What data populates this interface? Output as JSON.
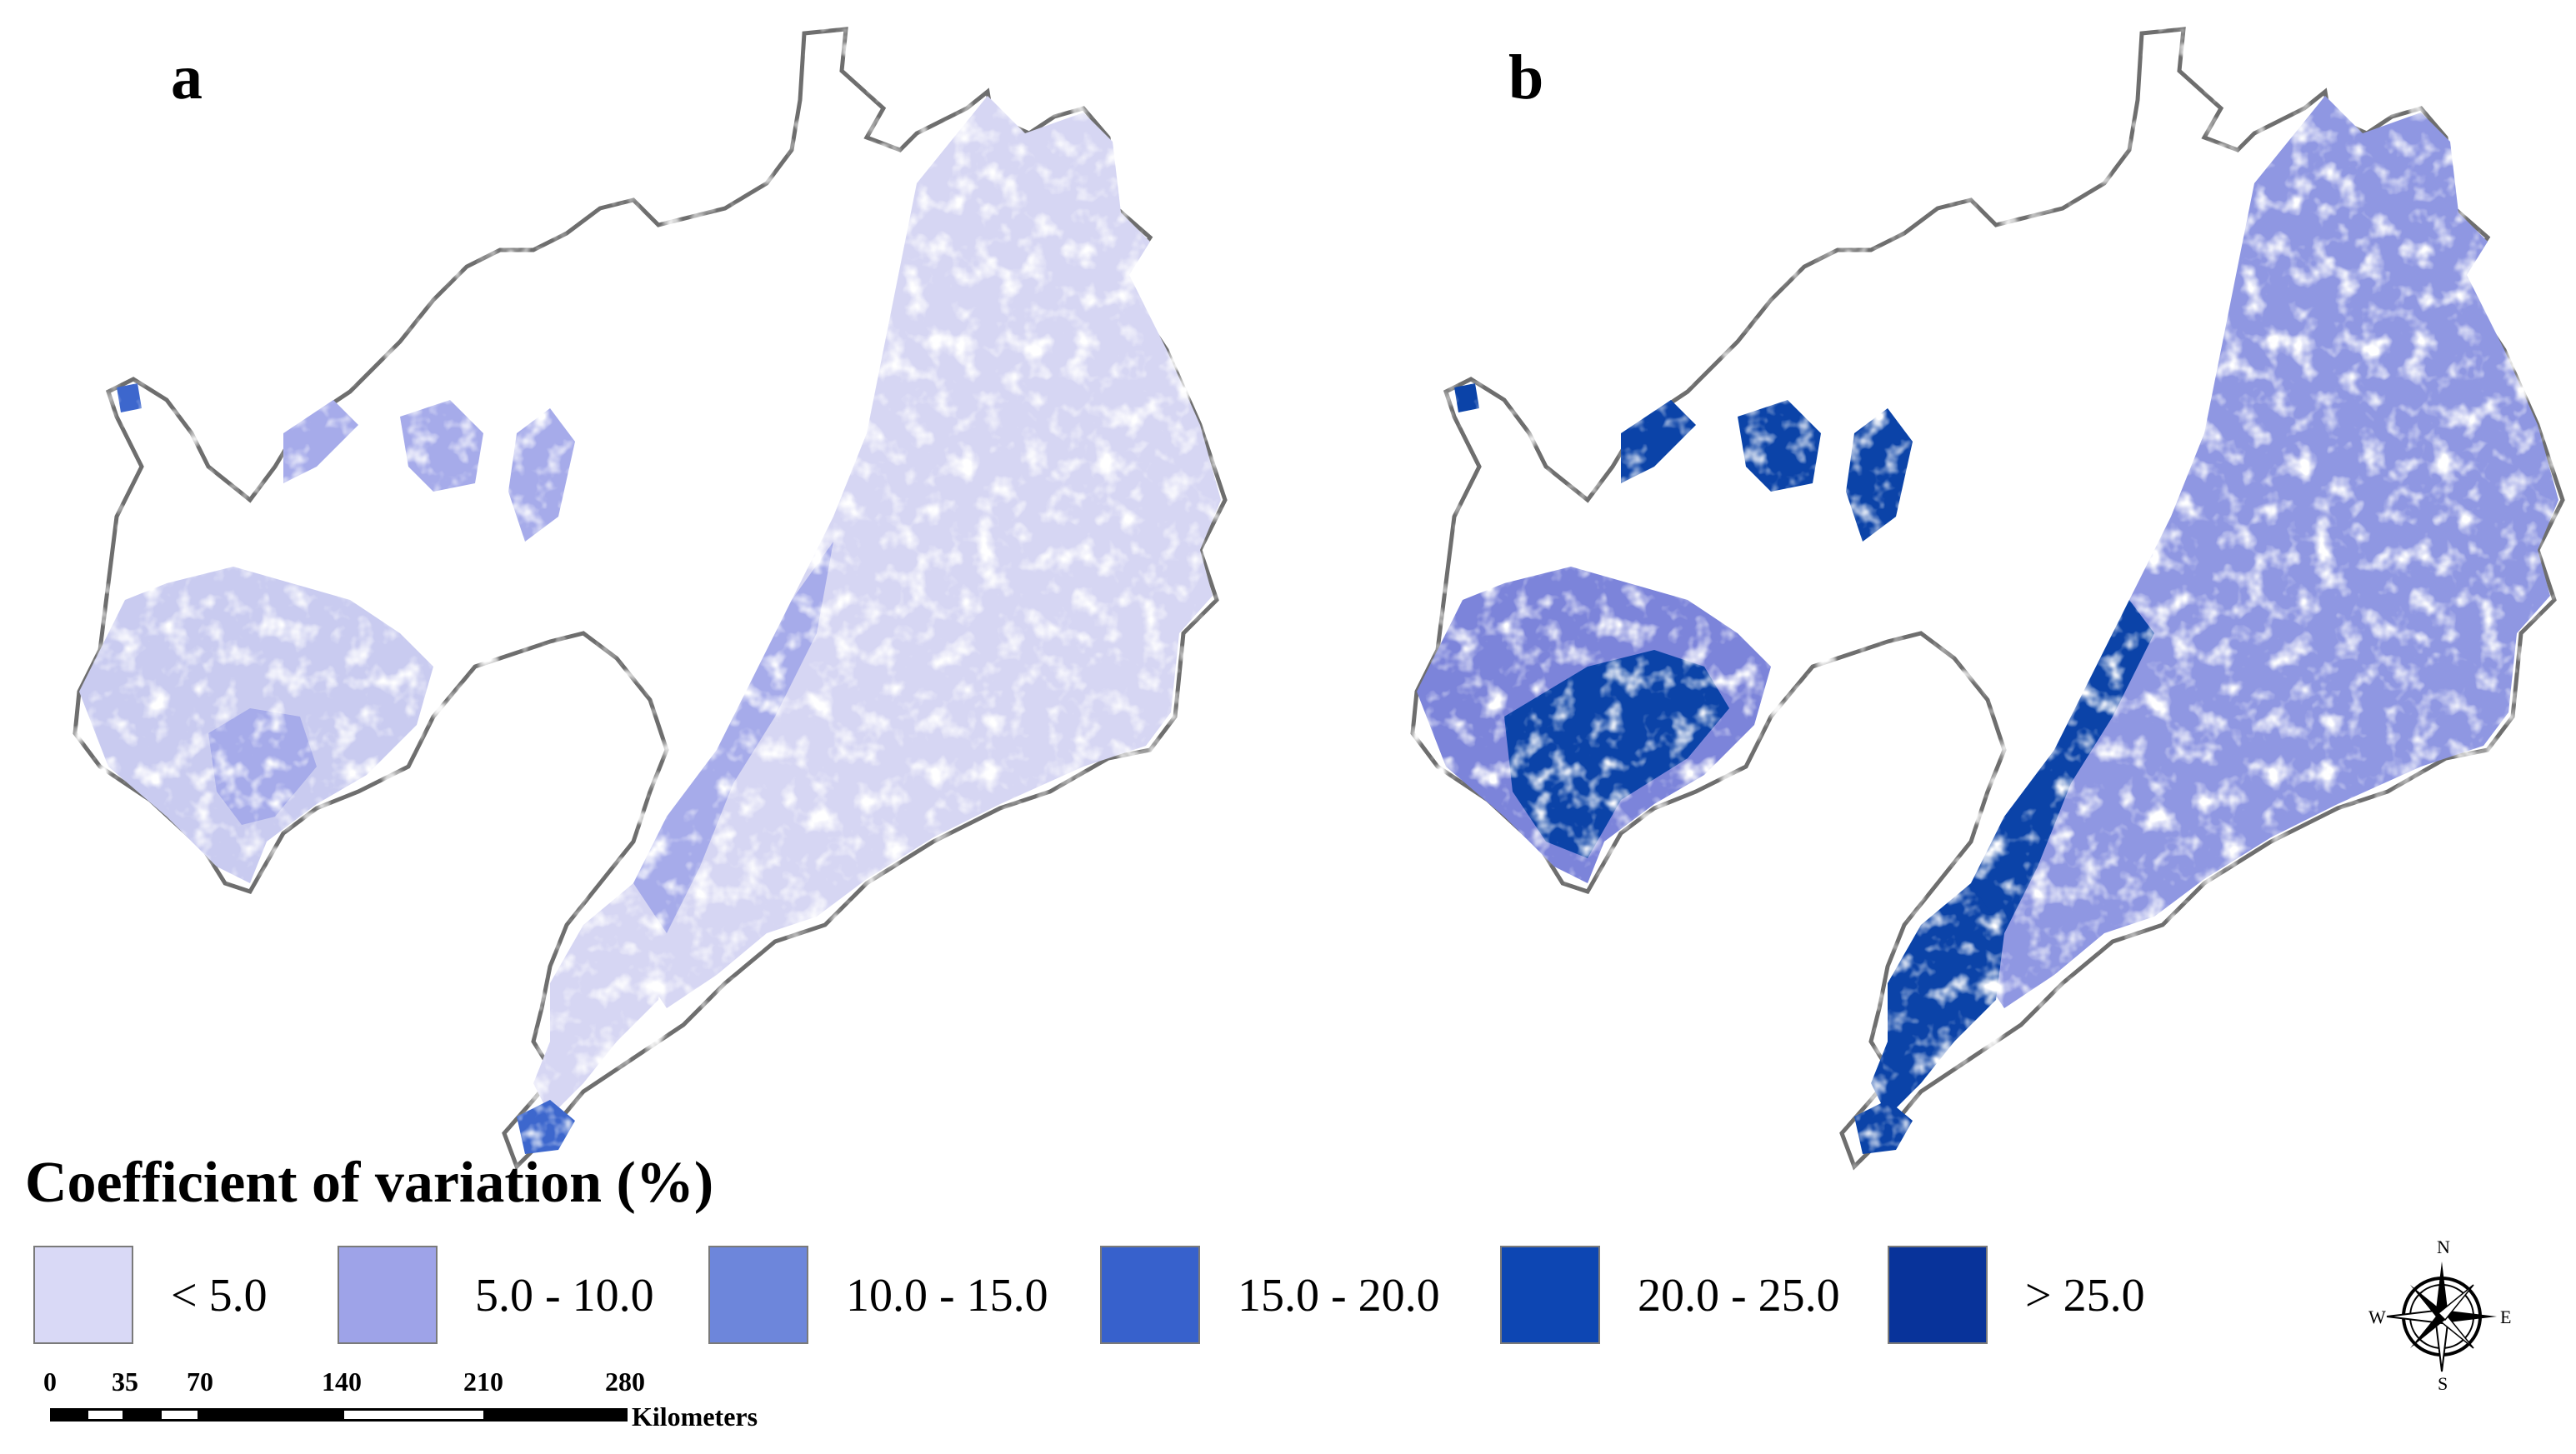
{
  "panels": [
    {
      "label": "a",
      "fills": [
        "#d6d6f3",
        "#a6abea",
        "#3d67cd"
      ]
    },
    {
      "label": "b",
      "fills": [
        "#8f97e2",
        "#7c84da",
        "#0b43a8"
      ]
    }
  ],
  "legend": {
    "title": "Coefficient of variation (%)",
    "classes": [
      {
        "label": "< 5.0",
        "color": "#d9d9f6"
      },
      {
        "label": "5.0 - 10.0",
        "color": "#9ea3e8"
      },
      {
        "label": "10.0 - 15.0",
        "color": "#6d86db"
      },
      {
        "label": "15.0 - 20.0",
        "color": "#3761cc"
      },
      {
        "label": "20.0 - 25.0",
        "color": "#0d46b3"
      },
      {
        "label": "> 25.0",
        "color": "#08339a"
      }
    ]
  },
  "scale_bar": {
    "ticks": [
      "0",
      "35",
      "70",
      "140",
      "210",
      "280"
    ],
    "unit": "Kilometers"
  },
  "compass": {
    "n": "N",
    "s": "S",
    "e": "E",
    "w": "W"
  },
  "colors": {
    "boundary": "#6e6e6e"
  }
}
